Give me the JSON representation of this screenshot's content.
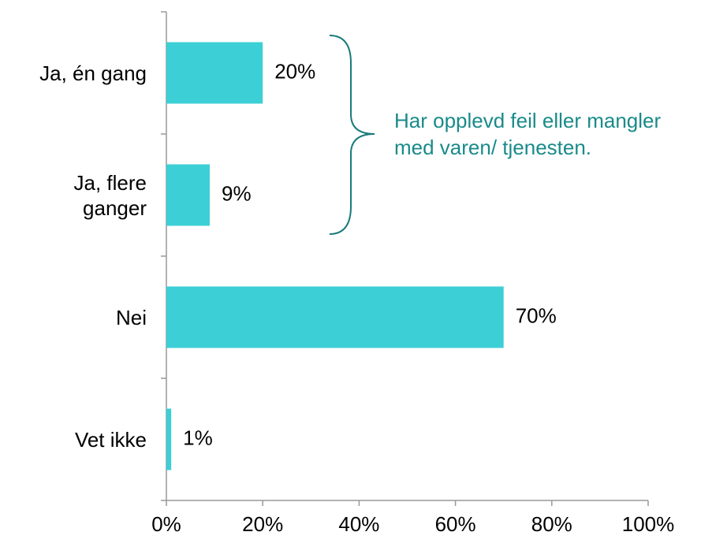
{
  "chart_data": {
    "type": "bar",
    "orientation": "horizontal",
    "categories": [
      "Ja, én gang",
      "Ja, flere ganger",
      "Nei",
      "Vet ikke"
    ],
    "values": [
      20,
      9,
      70,
      1
    ],
    "value_labels": [
      "20%",
      "9%",
      "70%",
      "1%"
    ],
    "color": "#3ccfd6",
    "xlim": [
      0,
      100
    ],
    "xticks": [
      {
        "value": 0,
        "label": "0%"
      },
      {
        "value": 20,
        "label": "20%"
      },
      {
        "value": 40,
        "label": "40%"
      },
      {
        "value": 60,
        "label": "60%"
      },
      {
        "value": 80,
        "label": "80%"
      },
      {
        "value": 100,
        "label": "100%"
      }
    ],
    "annotation": [
      "Har opplevd feil eller mangler",
      "med varen/ tjenesten."
    ],
    "annotation_color": "#1a8a8a"
  }
}
